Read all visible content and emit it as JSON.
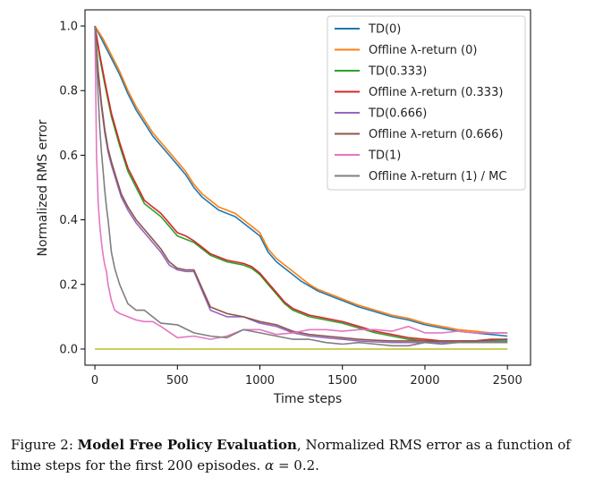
{
  "caption": {
    "figure_label": "Figure 2:",
    "bold_title": "Model Free Policy Evaluation",
    "text": ", Normalized RMS error as a function of time steps for the first 200 episodes.",
    "alpha_symbol": "α",
    "alpha_value": "= 0.2."
  },
  "chart_data": {
    "type": "line",
    "xlabel": "Time steps",
    "ylabel": "Normalized RMS error",
    "xlim": [
      -60,
      2640
    ],
    "ylim": [
      -0.05,
      1.05
    ],
    "xticks": [
      0,
      500,
      1000,
      1500,
      2000,
      2500
    ],
    "yticks": [
      0.0,
      0.2,
      0.4,
      0.6,
      0.8,
      1.0
    ],
    "ytick_labels": [
      "0.0",
      "0.2",
      "0.4",
      "0.6",
      "0.8",
      "1.0"
    ],
    "grid": false,
    "legend_position": "top-right",
    "series": [
      {
        "name": "TD(0)",
        "color": "#1f77b4",
        "x": [
          0,
          50,
          100,
          150,
          200,
          250,
          300,
          350,
          400,
          450,
          500,
          550,
          600,
          650,
          700,
          750,
          800,
          850,
          900,
          950,
          1000,
          1050,
          1100,
          1150,
          1200,
          1250,
          1300,
          1350,
          1400,
          1450,
          1500,
          1600,
          1700,
          1800,
          1900,
          2000,
          2100,
          2200,
          2300,
          2400,
          2500
        ],
        "y": [
          1.0,
          0.95,
          0.9,
          0.85,
          0.79,
          0.74,
          0.7,
          0.66,
          0.63,
          0.6,
          0.57,
          0.54,
          0.5,
          0.47,
          0.45,
          0.43,
          0.42,
          0.41,
          0.39,
          0.37,
          0.35,
          0.3,
          0.27,
          0.25,
          0.23,
          0.21,
          0.195,
          0.18,
          0.17,
          0.16,
          0.15,
          0.13,
          0.115,
          0.1,
          0.09,
          0.075,
          0.065,
          0.055,
          0.05,
          0.045,
          0.04
        ]
      },
      {
        "name": "Offline λ-return (0)",
        "color": "#ff7f0e",
        "x": [
          0,
          50,
          100,
          150,
          200,
          250,
          300,
          350,
          400,
          450,
          500,
          550,
          600,
          650,
          700,
          750,
          800,
          850,
          900,
          950,
          1000,
          1050,
          1100,
          1150,
          1200,
          1250,
          1300,
          1350,
          1400,
          1450,
          1500,
          1600,
          1700,
          1800,
          1900,
          2000,
          2100,
          2200,
          2300,
          2400,
          2500
        ],
        "y": [
          1.0,
          0.96,
          0.91,
          0.86,
          0.8,
          0.75,
          0.71,
          0.67,
          0.64,
          0.61,
          0.58,
          0.55,
          0.51,
          0.48,
          0.46,
          0.44,
          0.43,
          0.42,
          0.4,
          0.38,
          0.36,
          0.31,
          0.28,
          0.26,
          0.24,
          0.22,
          0.2,
          0.185,
          0.175,
          0.165,
          0.155,
          0.135,
          0.12,
          0.105,
          0.095,
          0.08,
          0.07,
          0.06,
          0.055,
          0.05,
          0.05
        ]
      },
      {
        "name": "TD(0.333)",
        "color": "#2ca02c",
        "x": [
          0,
          30,
          60,
          100,
          150,
          200,
          250,
          300,
          350,
          400,
          450,
          500,
          550,
          600,
          650,
          700,
          750,
          800,
          850,
          900,
          950,
          1000,
          1050,
          1100,
          1150,
          1200,
          1300,
          1400,
          1500,
          1600,
          1700,
          1800,
          1900,
          2000,
          2100,
          2200,
          2300,
          2400,
          2500
        ],
        "y": [
          1.0,
          0.9,
          0.82,
          0.72,
          0.63,
          0.55,
          0.5,
          0.45,
          0.43,
          0.41,
          0.38,
          0.35,
          0.34,
          0.33,
          0.31,
          0.29,
          0.28,
          0.27,
          0.265,
          0.26,
          0.25,
          0.23,
          0.2,
          0.17,
          0.14,
          0.12,
          0.1,
          0.09,
          0.08,
          0.065,
          0.05,
          0.04,
          0.03,
          0.025,
          0.02,
          0.02,
          0.022,
          0.025,
          0.025
        ]
      },
      {
        "name": "Offline λ-return (0.333)",
        "color": "#d62728",
        "x": [
          0,
          30,
          60,
          100,
          150,
          200,
          250,
          300,
          350,
          400,
          450,
          500,
          550,
          600,
          650,
          700,
          750,
          800,
          850,
          900,
          950,
          1000,
          1050,
          1100,
          1150,
          1200,
          1300,
          1400,
          1500,
          1600,
          1700,
          1800,
          1900,
          2000,
          2100,
          2200,
          2300,
          2400,
          2500
        ],
        "y": [
          1.0,
          0.91,
          0.83,
          0.73,
          0.64,
          0.56,
          0.51,
          0.46,
          0.44,
          0.42,
          0.39,
          0.36,
          0.35,
          0.335,
          0.315,
          0.295,
          0.285,
          0.275,
          0.27,
          0.265,
          0.255,
          0.235,
          0.205,
          0.175,
          0.145,
          0.125,
          0.105,
          0.095,
          0.085,
          0.07,
          0.055,
          0.045,
          0.035,
          0.03,
          0.025,
          0.025,
          0.025,
          0.03,
          0.03
        ]
      },
      {
        "name": "TD(0.666)",
        "color": "#9467bd",
        "x": [
          0,
          20,
          40,
          60,
          80,
          100,
          130,
          160,
          200,
          250,
          300,
          350,
          400,
          450,
          500,
          550,
          600,
          700,
          800,
          900,
          1000,
          1100,
          1200,
          1300,
          1400,
          1500,
          1600,
          1700,
          1800,
          1900,
          2000,
          2100,
          2200,
          2300,
          2400,
          2500
        ],
        "y": [
          1.0,
          0.85,
          0.75,
          0.67,
          0.61,
          0.57,
          0.52,
          0.47,
          0.43,
          0.39,
          0.36,
          0.33,
          0.3,
          0.26,
          0.245,
          0.24,
          0.24,
          0.12,
          0.1,
          0.1,
          0.08,
          0.07,
          0.05,
          0.04,
          0.035,
          0.03,
          0.025,
          0.022,
          0.02,
          0.02,
          0.02,
          0.02,
          0.02,
          0.022,
          0.022,
          0.022
        ]
      },
      {
        "name": "Offline λ-return (0.666)",
        "color": "#8c564b",
        "x": [
          0,
          20,
          40,
          60,
          80,
          100,
          130,
          160,
          200,
          250,
          300,
          350,
          400,
          450,
          500,
          550,
          600,
          700,
          800,
          900,
          1000,
          1100,
          1200,
          1300,
          1400,
          1500,
          1600,
          1700,
          1800,
          1900,
          2000,
          2100,
          2200,
          2300,
          2400,
          2500
        ],
        "y": [
          1.0,
          0.86,
          0.76,
          0.68,
          0.62,
          0.58,
          0.53,
          0.48,
          0.44,
          0.4,
          0.37,
          0.34,
          0.31,
          0.27,
          0.25,
          0.245,
          0.245,
          0.13,
          0.11,
          0.1,
          0.085,
          0.075,
          0.055,
          0.045,
          0.04,
          0.035,
          0.03,
          0.027,
          0.025,
          0.025,
          0.025,
          0.025,
          0.025,
          0.025,
          0.028,
          0.03
        ]
      },
      {
        "name": "TD(1)",
        "color": "#e377c2",
        "x": [
          0,
          10,
          20,
          30,
          40,
          50,
          60,
          70,
          80,
          100,
          120,
          150,
          200,
          250,
          300,
          350,
          400,
          500,
          600,
          700,
          800,
          900,
          1000,
          1100,
          1200,
          1300,
          1400,
          1500,
          1600,
          1700,
          1800,
          1900,
          2000,
          2100,
          2200,
          2300,
          2400,
          2500
        ],
        "y": [
          1.0,
          0.6,
          0.45,
          0.38,
          0.33,
          0.29,
          0.26,
          0.24,
          0.2,
          0.15,
          0.12,
          0.11,
          0.1,
          0.09,
          0.085,
          0.085,
          0.07,
          0.035,
          0.04,
          0.03,
          0.04,
          0.06,
          0.06,
          0.045,
          0.05,
          0.06,
          0.06,
          0.055,
          0.06,
          0.06,
          0.055,
          0.07,
          0.05,
          0.05,
          0.055,
          0.05,
          0.05,
          0.05
        ]
      },
      {
        "name": "Offline λ-return (1) / MC",
        "color": "#7f7f7f",
        "x": [
          0,
          10,
          20,
          30,
          40,
          50,
          60,
          70,
          80,
          100,
          120,
          150,
          200,
          250,
          300,
          350,
          400,
          500,
          600,
          700,
          800,
          900,
          1000,
          1100,
          1200,
          1300,
          1400,
          1500,
          1600,
          1700,
          1800,
          1900,
          2000,
          2100,
          2200,
          2300,
          2400,
          2500
        ],
        "y": [
          1.0,
          0.9,
          0.78,
          0.68,
          0.61,
          0.55,
          0.49,
          0.44,
          0.4,
          0.3,
          0.25,
          0.2,
          0.14,
          0.12,
          0.12,
          0.1,
          0.08,
          0.075,
          0.05,
          0.04,
          0.035,
          0.06,
          0.05,
          0.04,
          0.03,
          0.03,
          0.02,
          0.015,
          0.02,
          0.015,
          0.01,
          0.01,
          0.02,
          0.015,
          0.02,
          0.02,
          0.02,
          0.02
        ]
      },
      {
        "color": "#bcbd22",
        "x": [
          0,
          2500
        ],
        "y": [
          0.0,
          0.0
        ]
      }
    ]
  }
}
